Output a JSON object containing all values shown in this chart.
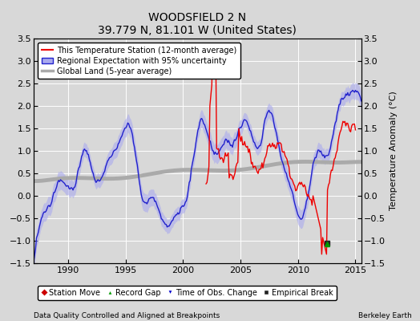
{
  "title": "WOODSFIELD 2 N",
  "subtitle": "39.779 N, 81.101 W (United States)",
  "ylabel": "Temperature Anomaly (°C)",
  "xlabel_left": "Data Quality Controlled and Aligned at Breakpoints",
  "xlabel_right": "Berkeley Earth",
  "ylim": [
    -1.5,
    3.5
  ],
  "xlim": [
    1987.0,
    2015.5
  ],
  "yticks": [
    -1.5,
    -1.0,
    -0.5,
    0,
    0.5,
    1.0,
    1.5,
    2.0,
    2.5,
    3.0,
    3.5
  ],
  "xticks": [
    1990,
    1995,
    2000,
    2005,
    2010,
    2015
  ],
  "bg_color": "#d8d8d8",
  "plot_bg_color": "#d8d8d8",
  "regional_color": "#2222cc",
  "regional_fill_color": "#aaaaee",
  "station_color": "#ee0000",
  "global_color": "#aaaaaa",
  "legend_labels": [
    "This Temperature Station (12-month average)",
    "Regional Expectation with 95% uncertainty",
    "Global Land (5-year average)"
  ],
  "marker_legend": [
    "Station Move",
    "Record Gap",
    "Time of Obs. Change",
    "Empirical Break"
  ],
  "marker_colors": [
    "#cc0000",
    "#009900",
    "#0000cc",
    "#222222"
  ],
  "empirical_break_year": 2012.5,
  "empirical_break_value": -1.05
}
